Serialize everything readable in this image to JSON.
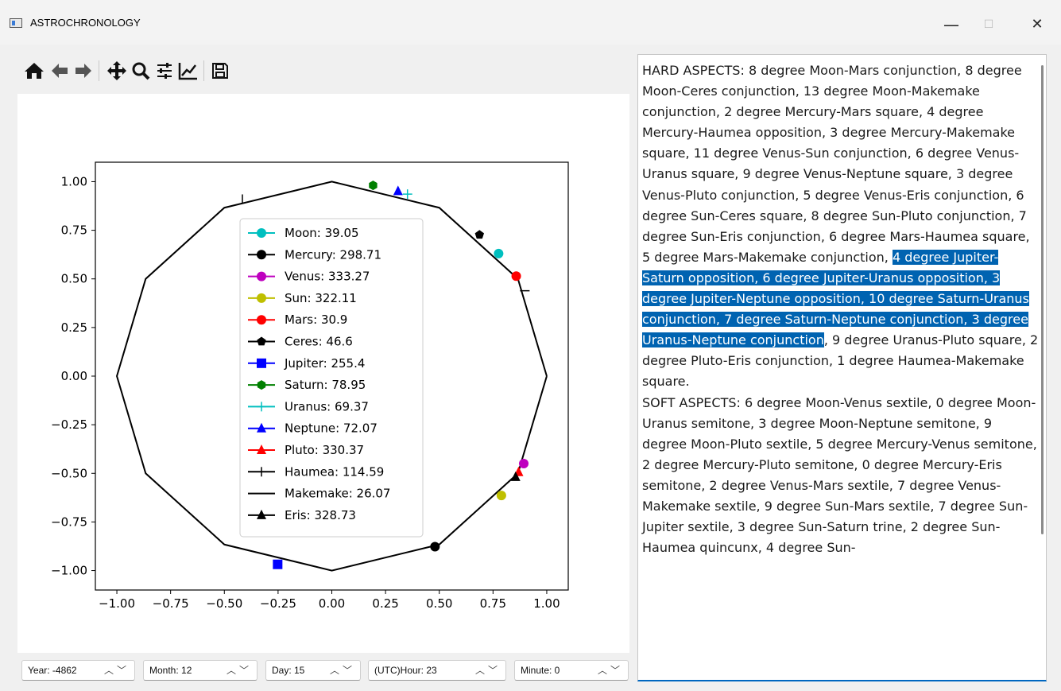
{
  "window": {
    "title": "ASTROCHRONOLOGY",
    "minimize_label": "—",
    "maximize_label": "☐",
    "close_label": "✕"
  },
  "toolbar": {
    "buttons": [
      {
        "name": "home-icon"
      },
      {
        "name": "back-arrow-icon"
      },
      {
        "name": "forward-arrow-icon"
      },
      {
        "name": "pan-icon"
      },
      {
        "name": "zoom-icon"
      },
      {
        "name": "configure-subplots-icon"
      },
      {
        "name": "edit-axis-icon"
      },
      {
        "name": "save-icon"
      }
    ]
  },
  "chart_data": {
    "type": "scatter",
    "xlim": [
      -1.1,
      1.1
    ],
    "ylim": [
      -1.1,
      1.1
    ],
    "x_ticks": [
      -1.0,
      -0.75,
      -0.5,
      -0.25,
      0.0,
      0.25,
      0.5,
      0.75,
      1.0
    ],
    "y_ticks": [
      -1.0,
      -0.75,
      -0.5,
      -0.25,
      0.0,
      0.25,
      0.5,
      0.75,
      1.0
    ],
    "x_tick_labels": [
      "−1.00",
      "−0.75",
      "−0.50",
      "−0.25",
      "0.00",
      "0.25",
      "0.50",
      "0.75",
      "1.00"
    ],
    "y_tick_labels": [
      "−1.00",
      "−0.75",
      "−0.50",
      "−0.25",
      "0.00",
      "0.25",
      "0.50",
      "0.75",
      "1.00"
    ],
    "grid": false,
    "legend_position": "center",
    "outline": {
      "x": [
        1.0,
        0.866,
        0.5,
        0.0,
        -0.5,
        -0.866,
        -1.0,
        -0.866,
        -0.5,
        0.0,
        0.5,
        0.866,
        1.0
      ],
      "y": [
        0.0,
        0.5,
        0.866,
        1.0,
        0.866,
        0.5,
        0.0,
        -0.5,
        -0.866,
        -1.0,
        -0.866,
        -0.5,
        0.0
      ],
      "color": "#000000"
    },
    "series": [
      {
        "name": "Moon: 39.05",
        "x": 0.776,
        "y": 0.63,
        "color": "#00bfbf",
        "marker": "circle"
      },
      {
        "name": "Mercury: 298.71",
        "x": 0.48,
        "y": -0.877,
        "color": "#000000",
        "marker": "circle"
      },
      {
        "name": "Venus: 333.27",
        "x": 0.893,
        "y": -0.45,
        "color": "#bf00bf",
        "marker": "circle"
      },
      {
        "name": "Sun: 322.11",
        "x": 0.789,
        "y": -0.614,
        "color": "#bfbf00",
        "marker": "circle"
      },
      {
        "name": "Mars: 30.9",
        "x": 0.858,
        "y": 0.514,
        "color": "#ff0000",
        "marker": "circle"
      },
      {
        "name": "Ceres: 46.6",
        "x": 0.687,
        "y": 0.727,
        "color": "#000000",
        "marker": "pentagon"
      },
      {
        "name": "Jupiter: 255.4",
        "x": -0.252,
        "y": -0.968,
        "color": "#0000ff",
        "marker": "square"
      },
      {
        "name": "Saturn: 78.95",
        "x": 0.192,
        "y": 0.981,
        "color": "#008000",
        "marker": "hexagon"
      },
      {
        "name": "Uranus: 69.37",
        "x": 0.352,
        "y": 0.936,
        "color": "#00bfbf",
        "marker": "plus"
      },
      {
        "name": "Neptune: 72.07",
        "x": 0.308,
        "y": 0.951,
        "color": "#0000ff",
        "marker": "triangle"
      },
      {
        "name": "Pluto: 330.37",
        "x": 0.869,
        "y": -0.494,
        "color": "#ff0000",
        "marker": "triangle"
      },
      {
        "name": "Haumea: 114.59",
        "x": -0.416,
        "y": 0.91,
        "color": "#000000",
        "marker": "vline"
      },
      {
        "name": "Makemake: 26.07",
        "x": 0.898,
        "y": 0.439,
        "color": "#000000",
        "marker": "hline"
      },
      {
        "name": "Eris: 328.73",
        "x": 0.855,
        "y": -0.519,
        "color": "#000000",
        "marker": "triangle"
      }
    ]
  },
  "text_panel": {
    "hard_before": "HARD ASPECTS: 8 degree Moon-Mars conjunction, 8 degree Moon-Ceres conjunction, 13 degree Moon-Makemake conjunction, 2 degree Mercury-Mars square, 4 degree Mercury-Haumea opposition, 3 degree Mercury-Makemake square, 11 degree Venus-Sun conjunction, 6 degree Venus-Uranus square, 9 degree Venus-Neptune square, 3 degree Venus-Pluto conjunction, 5 degree Venus-Eris conjunction, 6 degree Sun-Ceres square, 8 degree Sun-Pluto conjunction, 7 degree Sun-Eris conjunction, 6 degree Mars-Haumea square, 5 degree Mars-Makemake conjunction, ",
    "hard_selected": "4 degree Jupiter-Saturn opposition, 6 degree Jupiter-Uranus opposition, 3 degree Jupiter-Neptune opposition, 10 degree Saturn-Uranus conjunction, 7 degree Saturn-Neptune conjunction, 3 degree Uranus-Neptune conjunction",
    "hard_after": ", 9 degree Uranus-Pluto square, 2 degree Pluto-Eris conjunction, 1 degree Haumea-Makemake square.",
    "soft": "SOFT ASPECTS: 6 degree Moon-Venus sextile, 0 degree Moon-Uranus semitone, 3 degree Moon-Neptune semitone, 9 degree Moon-Pluto sextile, 5 degree Mercury-Venus semitone, 2 degree Mercury-Pluto semitone, 0 degree Mercury-Eris semitone, 2 degree Venus-Mars sextile, 7 degree Venus-Makemake sextile, 9 degree Sun-Mars sextile, 7 degree Sun-Jupiter sextile, 3 degree Sun-Saturn trine, 2 degree Sun-Haumea quincunx, 4 degree Sun-"
  },
  "spinners": {
    "year": "Year: -4862",
    "month": "Month: 12",
    "day": "Day: 15",
    "hour": "(UTC)Hour: 23",
    "minute": "Minute: 0",
    "arrows": "︿﹀"
  }
}
